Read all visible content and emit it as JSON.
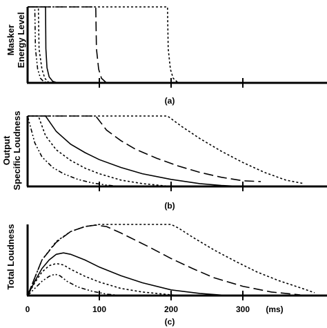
{
  "panel_labels": [
    "(a)",
    "(b)",
    "(c)"
  ],
  "x_unit": "(ms)",
  "chart_data": [
    {
      "panel": "(a)",
      "type": "line",
      "ylabel_lines": [
        "Masker",
        "Energy Level"
      ],
      "xlim": [
        0,
        400
      ],
      "ylim": [
        0,
        1
      ],
      "series": [
        {
          "style": "dash-dot-dot",
          "x": [
            0,
            10,
            11,
            14,
            18,
            22,
            28
          ],
          "y": [
            1,
            1,
            0.45,
            0.18,
            0.06,
            0.02,
            0
          ]
        },
        {
          "style": "dotted",
          "x": [
            0,
            15,
            16,
            20,
            24,
            30
          ],
          "y": [
            1,
            1,
            0.45,
            0.18,
            0.06,
            0
          ]
        },
        {
          "style": "solid",
          "x": [
            0,
            25,
            25.5,
            27,
            30,
            35,
            42
          ],
          "y": [
            1,
            1,
            0.45,
            0.2,
            0.08,
            0.02,
            0
          ]
        },
        {
          "style": "long-dash",
          "x": [
            0,
            95,
            96,
            99,
            103,
            110
          ],
          "y": [
            1,
            1,
            0.45,
            0.18,
            0.06,
            0
          ]
        },
        {
          "style": "dotted",
          "x": [
            0,
            195,
            196,
            199,
            203,
            210
          ],
          "y": [
            1,
            1,
            0.45,
            0.18,
            0.06,
            0
          ]
        }
      ]
    },
    {
      "panel": "(b)",
      "type": "line",
      "ylabel_lines": [
        "Output",
        "Specific Loudness"
      ],
      "xlim": [
        0,
        400
      ],
      "ylim": [
        0,
        1
      ],
      "series": [
        {
          "style": "dash-dot-dot",
          "x": [
            0,
            10,
            20,
            35,
            50,
            70,
            90,
            110,
            130
          ],
          "y": [
            1,
            0.62,
            0.42,
            0.27,
            0.18,
            0.1,
            0.05,
            0.02,
            0
          ]
        },
        {
          "style": "dotted",
          "x": [
            0,
            15,
            25,
            40,
            60,
            80,
            100,
            130,
            160,
            200
          ],
          "y": [
            1,
            1,
            0.72,
            0.52,
            0.37,
            0.26,
            0.18,
            0.09,
            0.04,
            0
          ]
        },
        {
          "style": "solid",
          "x": [
            0,
            25,
            40,
            60,
            80,
            100,
            130,
            160,
            200,
            240,
            270,
            300
          ],
          "y": [
            1,
            1,
            0.78,
            0.6,
            0.48,
            0.38,
            0.27,
            0.18,
            0.1,
            0.04,
            0.015,
            0
          ]
        },
        {
          "style": "long-dash",
          "x": [
            0,
            95,
            110,
            130,
            150,
            180,
            210,
            240,
            270,
            300,
            325
          ],
          "y": [
            1,
            1,
            0.8,
            0.65,
            0.53,
            0.4,
            0.29,
            0.2,
            0.13,
            0.08,
            0.07
          ]
        },
        {
          "style": "dotted",
          "x": [
            0,
            195,
            215,
            240,
            270,
            300,
            330,
            360,
            385
          ],
          "y": [
            1,
            1,
            0.85,
            0.68,
            0.5,
            0.34,
            0.2,
            0.09,
            0.04
          ]
        }
      ]
    },
    {
      "panel": "(c)",
      "type": "line",
      "ylabel_lines": [
        "Total Loudness"
      ],
      "xlim": [
        0,
        400
      ],
      "xticks": [
        0,
        100,
        200,
        300
      ],
      "xticklabels": [
        "0",
        "100",
        "200",
        "300"
      ],
      "ylim": [
        0,
        1
      ],
      "series": [
        {
          "style": "dash-dot-dot",
          "x": [
            0,
            10,
            20,
            30,
            38,
            45,
            55,
            70,
            90,
            110,
            130
          ],
          "y": [
            0,
            0.1,
            0.2,
            0.27,
            0.3,
            0.28,
            0.2,
            0.12,
            0.06,
            0.02,
            0
          ]
        },
        {
          "style": "dotted",
          "x": [
            0,
            10,
            20,
            30,
            40,
            50,
            60,
            80,
            100,
            130,
            160,
            190,
            210
          ],
          "y": [
            0,
            0.18,
            0.33,
            0.42,
            0.45,
            0.43,
            0.37,
            0.27,
            0.19,
            0.1,
            0.05,
            0.02,
            0
          ]
        },
        {
          "style": "solid",
          "x": [
            0,
            10,
            20,
            30,
            40,
            50,
            60,
            80,
            100,
            130,
            160,
            200,
            240,
            280
          ],
          "y": [
            0,
            0.2,
            0.38,
            0.5,
            0.58,
            0.6,
            0.58,
            0.5,
            0.4,
            0.28,
            0.18,
            0.08,
            0.03,
            0
          ]
        },
        {
          "style": "long-dash",
          "x": [
            0,
            20,
            40,
            60,
            80,
            95,
            110,
            130,
            150,
            170,
            200,
            230,
            260,
            300,
            340,
            380
          ],
          "y": [
            0,
            0.5,
            0.75,
            0.9,
            0.97,
            0.99,
            0.97,
            0.88,
            0.78,
            0.68,
            0.52,
            0.38,
            0.25,
            0.13,
            0.05,
            0.01
          ]
        },
        {
          "style": "dotted",
          "x": [
            0,
            20,
            40,
            60,
            80,
            100,
            120,
            150,
            180,
            200,
            210,
            230,
            260,
            290,
            320,
            350,
            380,
            400
          ],
          "y": [
            0,
            0.5,
            0.76,
            0.9,
            0.97,
            1,
            1,
            1,
            1,
            1,
            0.95,
            0.82,
            0.64,
            0.48,
            0.33,
            0.21,
            0.11,
            0.04
          ]
        }
      ]
    }
  ]
}
